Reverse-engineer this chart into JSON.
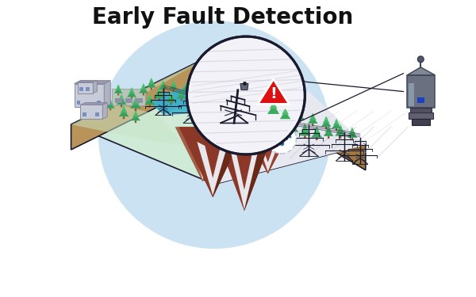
{
  "title": "Early Fault Detection",
  "title_fontsize": 20,
  "title_fontweight": "bold",
  "bg_color": "#ffffff",
  "title_color": "#111111",
  "light_blue_bg": "#c5dff0",
  "platform_top_color": "#d0ead8",
  "platform_top_snow": "#eaeaf0",
  "platform_side_left": "#b8935a",
  "platform_side_right": "#a07840",
  "platform_border": "#1a1a2e",
  "river_color": "#3ab0cc",
  "grass_color": "#70c080",
  "mountain_1": "#7a3828",
  "mountain_2": "#8b3828",
  "mountain_3": "#7a3020",
  "mountain_snow": "#e8e8ec",
  "tree_green1": "#3aaa60",
  "tree_green2": "#50c070",
  "building_wall": "#c8ccd8",
  "building_roof": "#a8aab8",
  "tower_color": "#1a1a2e",
  "wire_color": "#2a2a3e",
  "snowflake_color": "#3a90cc",
  "wifi_color": "#3070a8",
  "zoom_bg": "#f0f0f5",
  "zoom_border": "#1a1a2e",
  "warning_red": "#dd1111",
  "sensor_dark": "#505868",
  "line_color": "#1a1a2e",
  "device_body": "#6a7080",
  "device_highlight": "#909aaa",
  "device_blue": "#1a40c0"
}
